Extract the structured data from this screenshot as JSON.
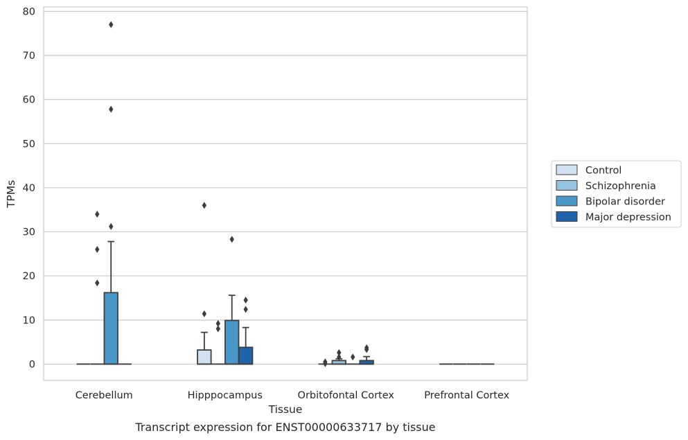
{
  "caption": "Transcript expression for ENST00000633717 by tissue",
  "chart_data": {
    "type": "box",
    "title": "",
    "xlabel": "Tissue",
    "ylabel": "TPMs",
    "ylim": [
      -3.7,
      81
    ],
    "yticks": [
      0,
      10,
      20,
      30,
      40,
      50,
      60,
      70,
      80
    ],
    "grid": "horizontal",
    "legend_position": "right",
    "categories": [
      "Cerebellum",
      "Hipppocampus",
      "Orbitofontal Cortex",
      "Prefrontal Cortex"
    ],
    "series": [
      {
        "name": "Control",
        "color": "#d0e1f2",
        "boxes": [
          {
            "q1": 0,
            "median": 0,
            "q3": 0,
            "whisker_low": 0,
            "whisker_high": 0,
            "outliers": []
          },
          {
            "q1": 0,
            "median": 0,
            "q3": 3.2,
            "whisker_low": 0,
            "whisker_high": 7.2,
            "outliers": [
              11.4,
              36
            ]
          },
          {
            "q1": 0,
            "median": 0,
            "q3": 0,
            "whisker_low": 0,
            "whisker_high": 0,
            "outliers": [
              0.5,
              0.1
            ]
          },
          {
            "q1": 0,
            "median": 0,
            "q3": 0,
            "whisker_low": 0,
            "whisker_high": 0,
            "outliers": []
          }
        ]
      },
      {
        "name": "Schizophrenia",
        "color": "#94c4df",
        "boxes": [
          {
            "q1": 0,
            "median": 0,
            "q3": 0,
            "whisker_low": 0,
            "whisker_high": 0,
            "outliers": [
              26,
              18.4,
              34
            ]
          },
          {
            "q1": 0,
            "median": 0,
            "q3": 0,
            "whisker_low": 0,
            "whisker_high": 0,
            "outliers": [
              8,
              9.2
            ]
          },
          {
            "q1": 0,
            "median": 0,
            "q3": 0.8,
            "whisker_low": 0,
            "whisker_high": 1.2,
            "outliers": [
              1.6,
              2.6
            ]
          },
          {
            "q1": 0,
            "median": 0,
            "q3": 0,
            "whisker_low": 0,
            "whisker_high": 0,
            "outliers": []
          }
        ]
      },
      {
        "name": "Bipolar disorder",
        "color": "#4a98c9",
        "boxes": [
          {
            "q1": 0,
            "median": 0,
            "q3": 16.2,
            "whisker_low": 0,
            "whisker_high": 27.8,
            "outliers": [
              77,
              57.8,
              31.2
            ]
          },
          {
            "q1": 0,
            "median": 0,
            "q3": 9.9,
            "whisker_low": 0,
            "whisker_high": 15.6,
            "outliers": [
              28.3
            ]
          },
          {
            "q1": 0,
            "median": 0,
            "q3": 0,
            "whisker_low": 0,
            "whisker_high": 0,
            "outliers": [
              1.6
            ]
          },
          {
            "q1": 0,
            "median": 0,
            "q3": 0,
            "whisker_low": 0,
            "whisker_high": 0,
            "outliers": []
          }
        ]
      },
      {
        "name": "Major depression",
        "color": "#2163aa",
        "boxes": [
          {
            "q1": 0,
            "median": 0,
            "q3": 0,
            "whisker_low": 0,
            "whisker_high": 0,
            "outliers": []
          },
          {
            "q1": 0,
            "median": 0,
            "q3": 3.8,
            "whisker_low": 0,
            "whisker_high": 8.3,
            "outliers": [
              12.4,
              14.5
            ]
          },
          {
            "q1": 0,
            "median": 0,
            "q3": 0.8,
            "whisker_low": 0,
            "whisker_high": 1.7,
            "outliers": [
              3.3,
              3.7
            ]
          },
          {
            "q1": 0,
            "median": 0,
            "q3": 0,
            "whisker_low": 0,
            "whisker_high": 0,
            "outliers": []
          }
        ]
      }
    ]
  }
}
